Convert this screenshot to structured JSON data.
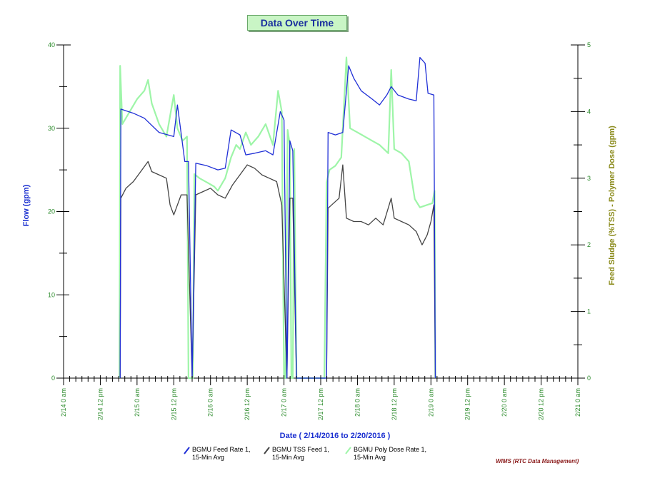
{
  "chart_data": {
    "type": "line",
    "title": "Data Over Time",
    "xlabel": "Date  ( 2/14/2016  to  2/20/2016 )",
    "ylabel_left": "Flow (gpm)",
    "ylabel_right": "Feed Sludge (%TSS) - Polymer Dose (gpm)",
    "x_range": [
      "2/14 0 am",
      "2/21 0 am"
    ],
    "x_tick_labels": [
      "2/14 0 am",
      "2/14 12 pm",
      "2/15 0 am",
      "2/15 12 pm",
      "2/16 0 am",
      "2/16 12 pm",
      "2/17 0 am",
      "2/17 12 pm",
      "2/18 0 am",
      "2/18 12 pm",
      "2/19 0 am",
      "2/19 12 pm",
      "2/20 0 am",
      "2/20 12 pm",
      "2/21 0 am"
    ],
    "ylim_left": [
      0,
      40
    ],
    "y_ticks_left": [
      0,
      10,
      20,
      30,
      40
    ],
    "ylim_right": [
      0,
      5
    ],
    "y_ticks_right": [
      0,
      1,
      2,
      3,
      4,
      5
    ],
    "legend_position": "bottom",
    "series": [
      {
        "name": "BGMU Feed Rate 1, 15-Min Avg",
        "axis": "left",
        "color": "#1f2fd6",
        "points": [
          [
            0.77,
            0
          ],
          [
            0.78,
            32.3
          ],
          [
            0.95,
            31.8
          ],
          [
            1.1,
            31.2
          ],
          [
            1.3,
            29.5
          ],
          [
            1.5,
            29.0
          ],
          [
            1.55,
            32.8
          ],
          [
            1.65,
            26.0
          ],
          [
            1.7,
            26.0
          ],
          [
            1.75,
            0
          ],
          [
            1.8,
            25.8
          ],
          [
            1.95,
            25.5
          ],
          [
            2.1,
            25.0
          ],
          [
            2.2,
            25.2
          ],
          [
            2.28,
            29.8
          ],
          [
            2.4,
            29.2
          ],
          [
            2.48,
            26.8
          ],
          [
            2.6,
            27.0
          ],
          [
            2.75,
            27.3
          ],
          [
            2.85,
            26.8
          ],
          [
            2.95,
            32.0
          ],
          [
            3.0,
            31.0
          ],
          [
            3.04,
            0
          ],
          [
            3.08,
            28.5
          ],
          [
            3.12,
            27.3
          ],
          [
            3.17,
            0
          ],
          [
            3.58,
            0
          ],
          [
            3.6,
            29.5
          ],
          [
            3.7,
            29.2
          ],
          [
            3.8,
            29.5
          ],
          [
            3.88,
            37.5
          ],
          [
            3.95,
            36.0
          ],
          [
            4.05,
            34.5
          ],
          [
            4.2,
            33.5
          ],
          [
            4.3,
            32.8
          ],
          [
            4.4,
            34.0
          ],
          [
            4.46,
            35.0
          ],
          [
            4.55,
            34.0
          ],
          [
            4.7,
            33.5
          ],
          [
            4.8,
            33.3
          ],
          [
            4.85,
            38.5
          ],
          [
            4.92,
            37.8
          ],
          [
            4.96,
            34.2
          ],
          [
            5.04,
            34.0
          ],
          [
            5.06,
            0
          ]
        ]
      },
      {
        "name": "BGMU TSS Feed 1, 15-Min Avg",
        "axis": "right",
        "color": "#444444",
        "points": [
          [
            0.77,
            0
          ],
          [
            0.78,
            2.7
          ],
          [
            0.85,
            2.85
          ],
          [
            0.95,
            2.95
          ],
          [
            1.05,
            3.1
          ],
          [
            1.15,
            3.25
          ],
          [
            1.2,
            3.1
          ],
          [
            1.3,
            3.05
          ],
          [
            1.4,
            3.0
          ],
          [
            1.45,
            2.6
          ],
          [
            1.5,
            2.45
          ],
          [
            1.55,
            2.6
          ],
          [
            1.6,
            2.75
          ],
          [
            1.68,
            2.75
          ],
          [
            1.75,
            0
          ],
          [
            1.8,
            2.75
          ],
          [
            1.9,
            2.8
          ],
          [
            2.0,
            2.85
          ],
          [
            2.1,
            2.75
          ],
          [
            2.2,
            2.7
          ],
          [
            2.3,
            2.9
          ],
          [
            2.4,
            3.05
          ],
          [
            2.5,
            3.2
          ],
          [
            2.6,
            3.15
          ],
          [
            2.7,
            3.05
          ],
          [
            2.8,
            3.0
          ],
          [
            2.9,
            2.95
          ],
          [
            2.97,
            2.6
          ],
          [
            3.04,
            0
          ],
          [
            3.08,
            2.7
          ],
          [
            3.12,
            2.7
          ],
          [
            3.17,
            0
          ],
          [
            3.58,
            0
          ],
          [
            3.6,
            2.55
          ],
          [
            3.65,
            2.6
          ],
          [
            3.75,
            2.7
          ],
          [
            3.8,
            3.2
          ],
          [
            3.85,
            2.4
          ],
          [
            3.95,
            2.35
          ],
          [
            4.05,
            2.35
          ],
          [
            4.15,
            2.3
          ],
          [
            4.25,
            2.4
          ],
          [
            4.35,
            2.3
          ],
          [
            4.46,
            2.7
          ],
          [
            4.5,
            2.4
          ],
          [
            4.6,
            2.35
          ],
          [
            4.7,
            2.3
          ],
          [
            4.8,
            2.2
          ],
          [
            4.88,
            2.0
          ],
          [
            4.95,
            2.15
          ],
          [
            5.0,
            2.35
          ],
          [
            5.04,
            2.6
          ],
          [
            5.06,
            0
          ]
        ]
      },
      {
        "name": "BGMU Poly Dose Rate 1, 15-Min Avg",
        "axis": "left",
        "color": "#9ef5a8",
        "points": [
          [
            0.76,
            0
          ],
          [
            0.77,
            37.5
          ],
          [
            0.8,
            30.5
          ],
          [
            0.9,
            32.0
          ],
          [
            1.0,
            33.5
          ],
          [
            1.1,
            34.5
          ],
          [
            1.15,
            35.8
          ],
          [
            1.2,
            33.0
          ],
          [
            1.3,
            30.5
          ],
          [
            1.4,
            29.0
          ],
          [
            1.5,
            34.0
          ],
          [
            1.55,
            30.0
          ],
          [
            1.62,
            28.5
          ],
          [
            1.68,
            29.0
          ],
          [
            1.7,
            0
          ],
          [
            1.76,
            0
          ],
          [
            1.78,
            24.5
          ],
          [
            1.85,
            24.0
          ],
          [
            1.95,
            23.5
          ],
          [
            2.05,
            23.0
          ],
          [
            2.1,
            22.5
          ],
          [
            2.2,
            24.0
          ],
          [
            2.28,
            26.5
          ],
          [
            2.35,
            28.0
          ],
          [
            2.4,
            27.5
          ],
          [
            2.48,
            29.5
          ],
          [
            2.55,
            28.0
          ],
          [
            2.65,
            29.0
          ],
          [
            2.75,
            30.5
          ],
          [
            2.85,
            28.0
          ],
          [
            2.92,
            34.5
          ],
          [
            2.97,
            32.0
          ],
          [
            3.0,
            0
          ],
          [
            3.02,
            0
          ],
          [
            3.05,
            29.8
          ],
          [
            3.08,
            28.0
          ],
          [
            3.1,
            0
          ],
          [
            3.12,
            0
          ],
          [
            3.14,
            27.5
          ],
          [
            3.17,
            0
          ],
          [
            3.55,
            0
          ],
          [
            3.58,
            23.5
          ],
          [
            3.62,
            25.0
          ],
          [
            3.7,
            25.5
          ],
          [
            3.78,
            26.5
          ],
          [
            3.85,
            38.5
          ],
          [
            3.9,
            30.0
          ],
          [
            4.0,
            29.5
          ],
          [
            4.1,
            29.0
          ],
          [
            4.2,
            28.5
          ],
          [
            4.3,
            28.0
          ],
          [
            4.42,
            27.0
          ],
          [
            4.46,
            37.0
          ],
          [
            4.5,
            27.5
          ],
          [
            4.6,
            27.0
          ],
          [
            4.7,
            26.0
          ],
          [
            4.78,
            21.5
          ],
          [
            4.85,
            20.5
          ],
          [
            4.95,
            20.8
          ],
          [
            5.02,
            21.0
          ],
          [
            5.05,
            22.5
          ],
          [
            5.06,
            0
          ]
        ]
      }
    ]
  },
  "footer": "WIMS (RTC Data Management)"
}
